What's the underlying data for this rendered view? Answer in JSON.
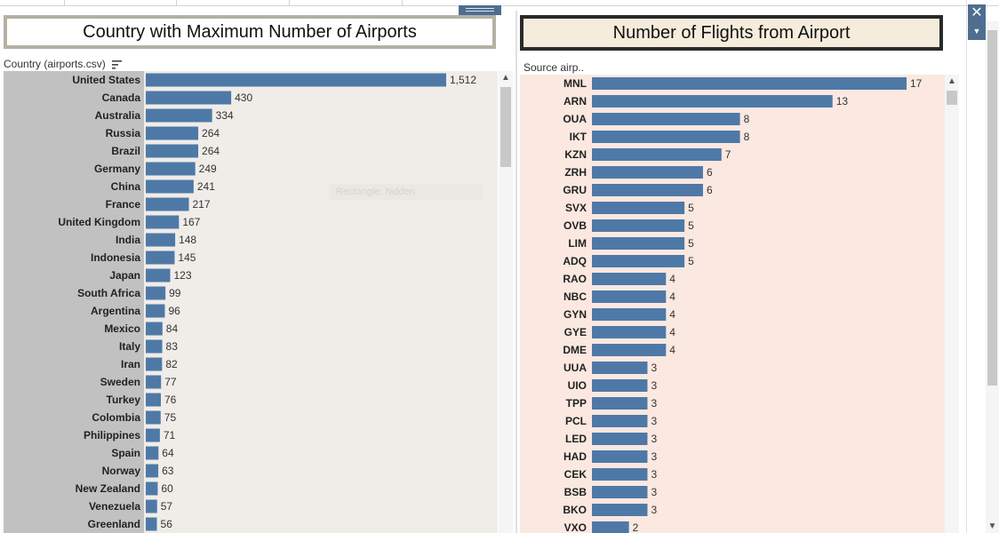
{
  "dashboard": {
    "colors": {
      "bar": "#4e79a7",
      "pane_left_bg": "#f0ece8",
      "pane_right_bg": "#fae8e1",
      "row_header_bg": "#c1c1c1",
      "title_right_bg": "#f5ecdc",
      "control_blue": "#4f6e8f"
    },
    "close_icon": "close-icon",
    "menu_icon": "chevron-down-icon",
    "ghost_tooltip": "Rectangle: hidden"
  },
  "chart_data": [
    {
      "type": "bar",
      "orientation": "horizontal",
      "title": "Country with Maximum Number of Airports",
      "field_header": "Country (airports.csv)",
      "sort_icon": "sort-descending-icon",
      "grid": false,
      "categories": [
        "United States",
        "Canada",
        "Australia",
        "Russia",
        "Brazil",
        "Germany",
        "China",
        "France",
        "United Kingdom",
        "India",
        "Indonesia",
        "Japan",
        "South Africa",
        "Argentina",
        "Mexico",
        "Italy",
        "Iran",
        "Sweden",
        "Turkey",
        "Colombia",
        "Philippines",
        "Spain",
        "Norway",
        "New Zealand",
        "Venezuela",
        "Greenland"
      ],
      "values": [
        1512,
        430,
        334,
        264,
        264,
        249,
        241,
        217,
        167,
        148,
        145,
        123,
        99,
        96,
        84,
        83,
        82,
        77,
        76,
        75,
        71,
        64,
        63,
        60,
        57,
        56
      ],
      "value_labels": [
        "1,512",
        "430",
        "334",
        "264",
        "264",
        "249",
        "241",
        "217",
        "167",
        "148",
        "145",
        "123",
        "99",
        "96",
        "84",
        "83",
        "82",
        "77",
        "76",
        "75",
        "71",
        "64",
        "63",
        "60",
        "57",
        "56"
      ],
      "xlim": [
        0,
        1700
      ]
    },
    {
      "type": "bar",
      "orientation": "horizontal",
      "title": "Number of Flights from Airport",
      "field_header": "Source airp..",
      "grid": false,
      "categories": [
        "MNL",
        "ARN",
        "OUA",
        "IKT",
        "KZN",
        "ZRH",
        "GRU",
        "SVX",
        "OVB",
        "LIM",
        "ADQ",
        "RAO",
        "NBC",
        "GYN",
        "GYE",
        "DME",
        "UUA",
        "UIO",
        "TPP",
        "PCL",
        "LED",
        "HAD",
        "CEK",
        "BSB",
        "BKO",
        "VXO"
      ],
      "values": [
        17,
        13,
        8,
        8,
        7,
        6,
        6,
        5,
        5,
        5,
        5,
        4,
        4,
        4,
        4,
        4,
        3,
        3,
        3,
        3,
        3,
        3,
        3,
        3,
        3,
        2
      ],
      "value_labels": [
        "17",
        "13",
        "8",
        "8",
        "7",
        "6",
        "6",
        "5",
        "5",
        "5",
        "5",
        "4",
        "4",
        "4",
        "4",
        "4",
        "3",
        "3",
        "3",
        "3",
        "3",
        "3",
        "3",
        "3",
        "3",
        "2"
      ],
      "xlim": [
        0,
        19
      ]
    }
  ]
}
